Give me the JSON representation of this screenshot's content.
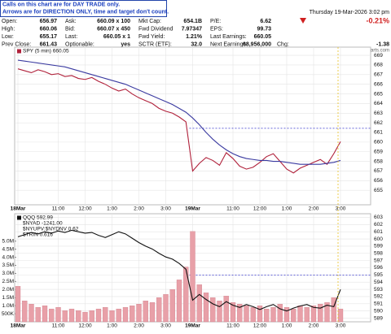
{
  "header": {
    "notice": [
      "Calls on this chart are for DAY TRADE only.",
      "Arrows are for DIRECTION ONLY, time and target don't count."
    ],
    "datetime": "Thursday  19-Mar-2026  3:02 pm",
    "change_pct": "-0.21%",
    "copyright": "© StockCharts.com",
    "quote": [
      [
        [
          "Open:",
          "656.97"
        ],
        [
          "High:",
          "660.06"
        ],
        [
          "Low:",
          "655.17"
        ],
        [
          "Prev Close:",
          "661.43"
        ]
      ],
      [
        [
          "Ask:",
          "660.09 x 100"
        ],
        [
          "Bid:",
          "660.07 x 450"
        ],
        [
          "Last:",
          "660.05 x 1"
        ],
        [
          "Optionable:",
          "yes"
        ]
      ],
      [
        [
          "Mkt Cap:",
          "654.1B"
        ],
        [
          "Fwd Dividend",
          "7.97347"
        ],
        [
          "Fwd Yield:",
          "1.21%"
        ],
        [
          "SCTR (ETF):",
          "32.0"
        ]
      ],
      [
        [
          "P/E:",
          "6.62"
        ],
        [
          "EPS:",
          "99.73"
        ],
        [
          "Last Earnings:",
          "660.05"
        ],
        [
          "Next Earnings:",
          "68,956,000"
        ]
      ],
      [
        [
          "Chg:",
          "-1.38"
        ]
      ]
    ]
  },
  "chart_data": [
    {
      "type": "line",
      "yaxis_side": "right",
      "grid": true,
      "categories": [
        "18Mar",
        null,
        null,
        null,
        null,
        null,
        "11:00",
        null,
        null,
        null,
        "12:00",
        null,
        null,
        null,
        "1:00",
        null,
        null,
        null,
        "2:00",
        null,
        null,
        null,
        "3:00",
        null,
        null,
        null,
        "19Mar",
        null,
        null,
        null,
        null,
        null,
        "11:00",
        null,
        null,
        null,
        "12:00",
        null,
        null,
        null,
        "1:00",
        null,
        null,
        null,
        "2:00",
        null,
        null,
        null,
        "3:00"
      ],
      "ylim": [
        653.5,
        669.85
      ],
      "yticks": [
        655,
        656,
        657,
        658,
        659,
        660,
        661,
        662,
        663,
        664,
        665,
        666,
        667,
        668,
        669
      ],
      "hline": 661.43,
      "hline_color": "#3333cc",
      "series": [
        {
          "name": "SPY (5 min) 660.05",
          "color": "#b0203a",
          "values": [
            667.6,
            667.4,
            667.2,
            667.5,
            667.3,
            667.0,
            667.1,
            666.8,
            666.9,
            666.6,
            666.5,
            666.7,
            666.3,
            666.0,
            665.6,
            665.3,
            665.5,
            665.0,
            664.6,
            664.3,
            664.0,
            663.5,
            663.2,
            663.0,
            662.6,
            662.1,
            657.0,
            657.8,
            658.4,
            658.1,
            657.6,
            658.9,
            658.3,
            657.5,
            657.2,
            657.4,
            657.9,
            658.5,
            658.8,
            658.0,
            657.2,
            656.8,
            657.3,
            657.6,
            657.9,
            658.2,
            657.7,
            658.8,
            660.05
          ]
        },
        {
          "color": "#3a3aa0",
          "values": [
            668.5,
            668.4,
            668.3,
            668.2,
            668.1,
            668.0,
            667.9,
            667.8,
            667.6,
            667.4,
            667.2,
            667.0,
            666.8,
            666.6,
            666.4,
            666.2,
            666.0,
            665.7,
            665.4,
            665.1,
            664.8,
            664.5,
            664.2,
            663.9,
            663.5,
            663.1,
            662.5,
            661.8,
            661.0,
            660.3,
            659.7,
            659.2,
            658.8,
            658.5,
            658.3,
            658.2,
            658.1,
            658.1,
            658.0,
            658.0,
            657.9,
            657.8,
            657.7,
            657.7,
            657.7,
            657.7,
            657.8,
            657.9,
            658.1
          ]
        }
      ]
    },
    {
      "type": "bar",
      "yaxis_side": "left",
      "grid": true,
      "categories": [
        "18Mar",
        null,
        null,
        null,
        null,
        null,
        "11:00",
        null,
        null,
        null,
        "12:00",
        null,
        null,
        null,
        "1:00",
        null,
        null,
        null,
        "2:00",
        null,
        null,
        null,
        "3:00",
        null,
        null,
        null,
        "19Mar",
        null,
        null,
        null,
        null,
        null,
        "11:00",
        null,
        null,
        null,
        "12:00",
        null,
        null,
        null,
        "1:00",
        null,
        null,
        null,
        "2:00",
        null,
        null,
        null,
        "3:00"
      ],
      "ylim": [
        0,
        6700000
      ],
      "yticks": [
        {
          "value": 500000,
          "label": "500K"
        },
        {
          "value": 1000000,
          "label": "1.0M"
        },
        {
          "value": 1500000,
          "label": "1.5M"
        },
        {
          "value": 2000000,
          "label": "2.0M"
        },
        {
          "value": 2500000,
          "label": "2.5M"
        },
        {
          "value": 3000000,
          "label": "3.0M"
        },
        {
          "value": 3500000,
          "label": "3.5M"
        },
        {
          "value": 4000000,
          "label": "4.0M"
        },
        {
          "value": 4500000,
          "label": "4.5M"
        },
        {
          "value": 5000000,
          "label": "5.0M"
        }
      ],
      "y2lim": [
        588.5,
        603.5
      ],
      "y2ticks": [
        589,
        590,
        591,
        592,
        593,
        594,
        595,
        596,
        597,
        598,
        599,
        600,
        601,
        602,
        603
      ],
      "hline": 595,
      "hline_color": "#3333cc",
      "annotations": [
        "$NYAD -1241.00",
        "$NYUPV:$NYDNV 0.62",
        "$TRIN 0.616"
      ],
      "series": [
        {
          "color": "#e8a0a8",
          "values": [
            2200000,
            1300000,
            1100000,
            900000,
            1000000,
            800000,
            900000,
            700000,
            800000,
            700000,
            600000,
            700000,
            800000,
            900000,
            700000,
            800000,
            900000,
            1000000,
            1100000,
            1300000,
            1200000,
            1500000,
            1700000,
            2000000,
            2600000,
            3400000,
            5600000,
            2300000,
            1800000,
            1500000,
            1300000,
            1600000,
            1200000,
            1100000,
            1000000,
            900000,
            1000000,
            800000,
            900000,
            1100000,
            900000,
            800000,
            1000000,
            900000,
            1000000,
            1100000,
            1200000,
            1500000,
            800000
          ]
        },
        {
          "name": "QQQ 592.99",
          "type": "line",
          "axis": "y2",
          "color": "#111111",
          "values": [
            600.3,
            600.6,
            600.9,
            600.7,
            601.0,
            600.8,
            601.1,
            600.9,
            601.2,
            601.0,
            600.8,
            600.9,
            600.5,
            600.2,
            600.6,
            601.0,
            600.7,
            600.1,
            599.5,
            599.0,
            598.6,
            598.0,
            597.5,
            597.2,
            596.6,
            595.8,
            591.5,
            592.3,
            591.6,
            591.0,
            590.6,
            591.3,
            590.8,
            590.5,
            590.9,
            590.6,
            590.2,
            590.6,
            590.9,
            590.3,
            590.0,
            590.4,
            590.7,
            590.9,
            590.5,
            590.4,
            590.8,
            590.6,
            592.99
          ]
        }
      ]
    }
  ]
}
